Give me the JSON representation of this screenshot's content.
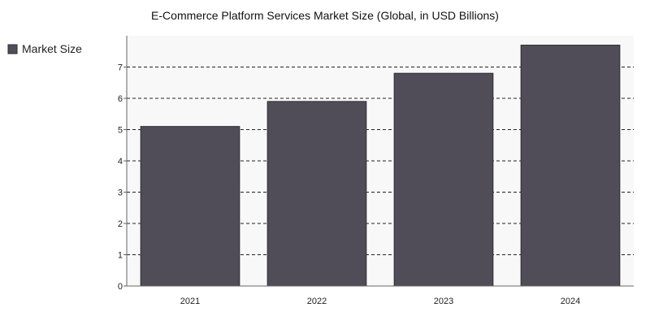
{
  "chart_data": {
    "type": "bar",
    "title": "E-Commerce Platform Services Market Size (Global, in USD Billions)",
    "categories": [
      "2021",
      "2022",
      "2023",
      "2024"
    ],
    "series": [
      {
        "name": "Market Size",
        "values": [
          5.1,
          5.9,
          6.8,
          7.7
        ]
      }
    ],
    "xlabel": "",
    "ylabel": "",
    "ylim": [
      0,
      8
    ],
    "yticks": [
      0,
      1,
      2,
      3,
      4,
      5,
      6,
      7
    ],
    "grid": true,
    "legend_position": "left",
    "colors": {
      "bar": "#514d58",
      "bar_edge": "#2e2b33",
      "plot_background": "#f8f8f8",
      "grid": "#222222",
      "axis": "#666666"
    }
  }
}
